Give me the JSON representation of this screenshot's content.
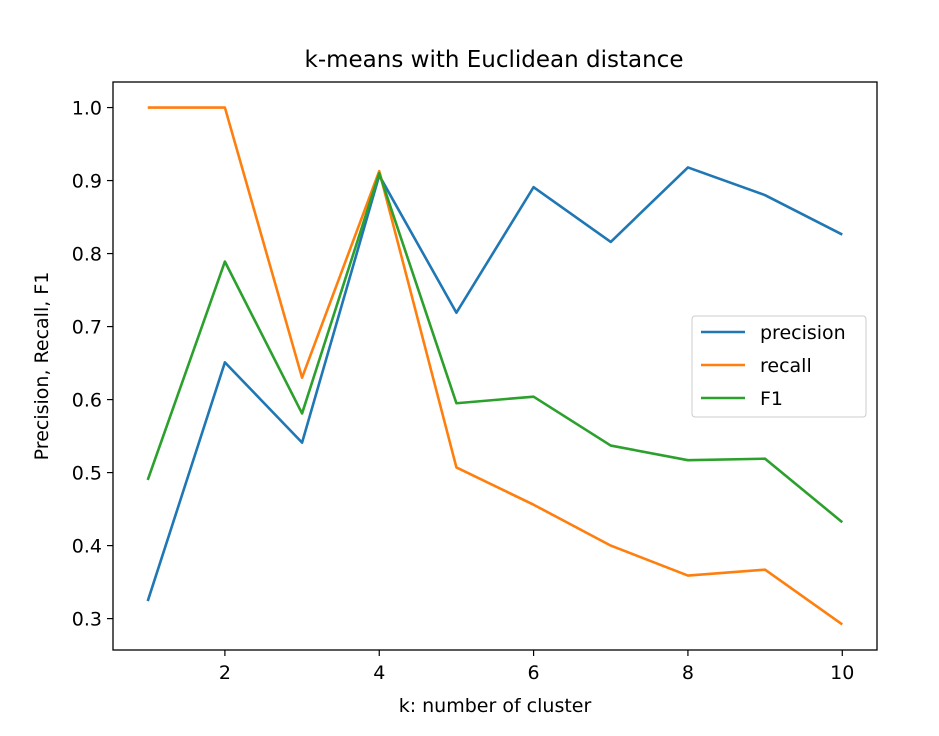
{
  "chart_data": {
    "type": "line",
    "title": "k-means with Euclidean distance",
    "xlabel": "k: number of cluster",
    "ylabel": "Precision, Recall, F1",
    "x": [
      1,
      2,
      3,
      4,
      5,
      6,
      7,
      8,
      9,
      10
    ],
    "xlim": [
      0.55,
      10.45
    ],
    "ylim": [
      0.257,
      1.035
    ],
    "xticks": [
      2,
      4,
      6,
      8,
      10
    ],
    "yticks": [
      0.3,
      0.4,
      0.5,
      0.6,
      0.7,
      0.8,
      0.9,
      1.0
    ],
    "xtick_labels": [
      "2",
      "4",
      "6",
      "8",
      "10"
    ],
    "ytick_labels": [
      "0.3",
      "0.4",
      "0.5",
      "0.6",
      "0.7",
      "0.8",
      "0.9",
      "1.0"
    ],
    "grid": false,
    "legend_position": "center-right",
    "series": [
      {
        "name": "precision",
        "color": "#1f77b4",
        "values": [
          0.324,
          0.651,
          0.541,
          0.907,
          0.719,
          0.891,
          0.816,
          0.918,
          0.88,
          0.826
        ]
      },
      {
        "name": "recall",
        "color": "#ff7f0e",
        "values": [
          1.0,
          1.0,
          0.63,
          0.913,
          0.507,
          0.456,
          0.4,
          0.359,
          0.367,
          0.292
        ]
      },
      {
        "name": "F1",
        "color": "#2ca02c",
        "values": [
          0.49,
          0.789,
          0.581,
          0.91,
          0.595,
          0.604,
          0.537,
          0.517,
          0.519,
          0.432
        ]
      }
    ]
  }
}
